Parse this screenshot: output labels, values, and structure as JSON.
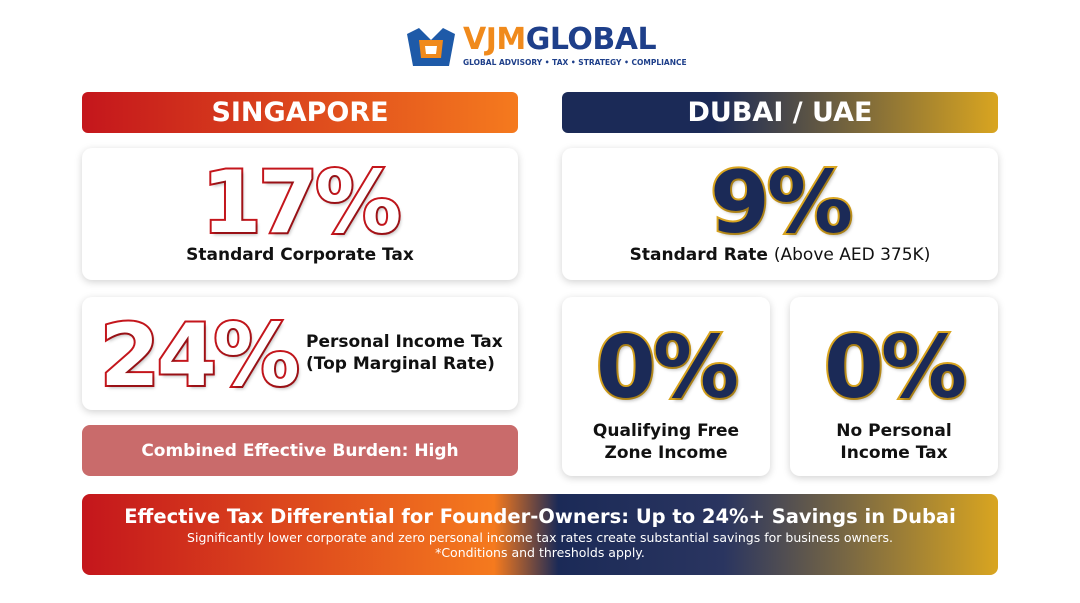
{
  "logo": {
    "brand_a": "VJM",
    "brand_b": "GLOBAL",
    "tagline": "GLOBAL ADVISORY • TAX • STRATEGY • COMPLIANCE"
  },
  "singapore": {
    "header": "SINGAPORE",
    "corporate": {
      "rate": "17%",
      "label": "Standard Corporate Tax"
    },
    "personal": {
      "rate": "24%",
      "label_line1": "Personal Income Tax",
      "label_line2": "(Top Marginal Rate)"
    },
    "burden": "Combined Effective Burden: High"
  },
  "dubai": {
    "header": "DUBAI / UAE",
    "standard": {
      "rate": "9%",
      "label": "Standard Rate",
      "label_note": "(Above AED 375K)"
    },
    "free_zone": {
      "rate": "0%",
      "label_line1": "Qualifying Free",
      "label_line2": "Zone Income"
    },
    "personal": {
      "rate": "0%",
      "label_line1": "No Personal",
      "label_line2": "Income Tax"
    }
  },
  "footer": {
    "headline": "Effective Tax Differential for Founder-Owners: Up to 24%+ Savings in Dubai",
    "body": "Significantly lower corporate and zero personal income tax rates create substantial savings for business owners.",
    "note": "*Conditions and thresholds apply."
  }
}
